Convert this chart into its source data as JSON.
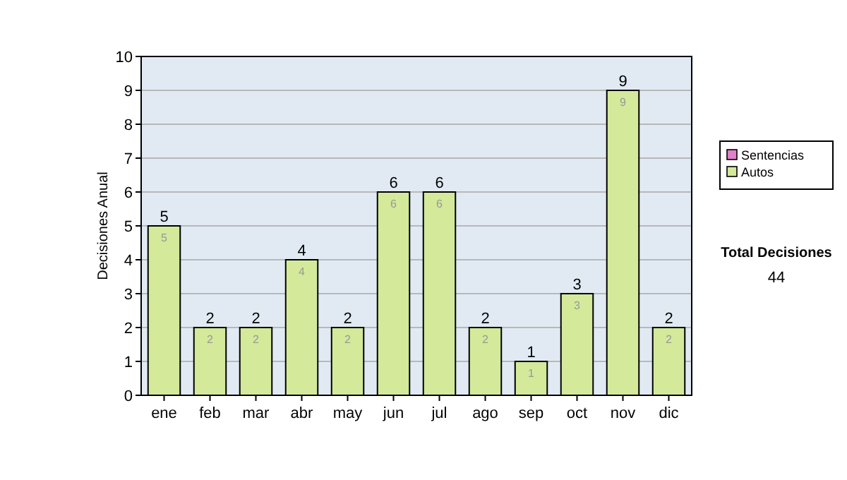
{
  "chart_data": {
    "type": "bar",
    "stacked": true,
    "ylabel": "Decisiones Anual",
    "categories": [
      "ene",
      "feb",
      "mar",
      "abr",
      "may",
      "jun",
      "jul",
      "ago",
      "sep",
      "oct",
      "nov",
      "dic"
    ],
    "series": [
      {
        "name": "Sentencias",
        "color": "#e080c8",
        "values": [
          0,
          0,
          0,
          0,
          0,
          0,
          0,
          0,
          0,
          0,
          0,
          0
        ]
      },
      {
        "name": "Autos",
        "color": "#d4e99a",
        "values": [
          5,
          2,
          2,
          4,
          2,
          6,
          6,
          2,
          1,
          3,
          9,
          2
        ],
        "value_labels": [
          "5",
          "2",
          "2",
          "4",
          "2",
          "6",
          "6",
          "2",
          "1",
          "3",
          "9",
          "2"
        ]
      }
    ],
    "totals": [
      "5",
      "2",
      "2",
      "4",
      "2",
      "6",
      "6",
      "2",
      "1",
      "3",
      "9",
      "2"
    ],
    "ylim": [
      0,
      10
    ],
    "yticks": [
      0,
      1,
      2,
      3,
      4,
      5,
      6,
      7,
      8,
      9,
      10
    ],
    "grid": "y",
    "legend": "right",
    "annotations": [
      "Total Decisiones",
      "44"
    ]
  }
}
